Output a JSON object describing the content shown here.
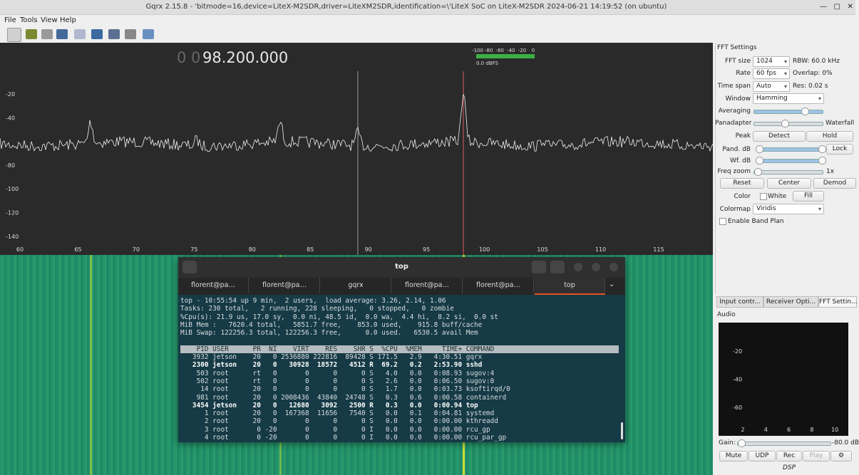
{
  "window": {
    "title": "Gqrx 2.15.8 - 'bitmode=16,device=LiteX-M2SDR,driver=LiteXM2SDR,identification=\\'LiteX SoC on LiteX-M2SDR 2024-06-21 14:19:52 (on ubuntu)",
    "menu": [
      "File",
      "Tools",
      "View",
      "Help"
    ]
  },
  "spectrum": {
    "frequency_dim": "0 0",
    "frequency": "98.200.000",
    "y_labels": [
      -20,
      -40,
      -80,
      -100,
      -120,
      -140
    ],
    "x_labels": [
      60,
      65,
      70,
      75,
      80,
      85,
      90,
      95,
      100,
      105,
      110,
      115
    ],
    "meter_labels": [
      -100,
      -80,
      -60,
      -40,
      -20,
      0
    ],
    "meter_value": "0.0 dBFS"
  },
  "terminal": {
    "title": "top",
    "tabs": [
      "florent@pa…",
      "florent@pa…",
      "gqrx",
      "florent@pa…",
      "florent@pa…",
      "top"
    ],
    "summary": [
      "top - 10:55:54 up 9 min,  2 users,  load average: 3.26, 2.14, 1.06",
      "Tasks: 230 total,   2 running, 228 sleeping,   0 stopped,   0 zombie",
      "%Cpu(s): 21.9 us, 17.0 sy,  0.0 ni, 48.5 id,  0.0 wa,  4.4 hi,  8.2 si,  0.0 st",
      "MiB Mem :   7620.4 total,   5851.7 free,    853.0 used,    915.8 buff/cache",
      "MiB Swap: 122256.3 total, 122256.3 free,      0.0 used.   6530.5 avail Mem"
    ],
    "table_header": "    PID USER      PR  NI    VIRT    RES    SHR S  %CPU  %MEM     TIME+ COMMAND",
    "rows": [
      {
        "text": "   3932 jetson    20   0 2536880 222816  89428 S 171.5   2.9   4:30.51 gqrx",
        "bold": false
      },
      {
        "text": "   2300 jetson    20   0   30928  18572   4512 R  69.2   0.2   2:53.90 sshd",
        "bold": true
      },
      {
        "text": "    503 root      rt   0       0      0      0 S   4.0   0.0   0:08.93 sugov:4",
        "bold": false
      },
      {
        "text": "    502 root      rt   0       0      0      0 S   2.6   0.0   0:06.50 sugov:0",
        "bold": false
      },
      {
        "text": "     14 root      20   0       0      0      0 S   1.7   0.0   0:03.73 ksoftirqd/0",
        "bold": false
      },
      {
        "text": "    981 root      20   0 2008436  43840  24748 S   0.3   0.6   0:00.58 containerd",
        "bold": false
      },
      {
        "text": "   3454 jetson    20   0   12680   3092   2500 R   0.3   0.0   0:00.94 top",
        "bold": true
      },
      {
        "text": "      1 root      20   0  167368  11656   7540 S   0.0   0.1   0:04.81 systemd",
        "bold": false
      },
      {
        "text": "      2 root      20   0       0      0      0 S   0.0   0.0   0:00.00 kthreadd",
        "bold": false
      },
      {
        "text": "      3 root       0 -20       0      0      0 I   0.0   0.0   0:00.00 rcu_gp",
        "bold": false
      },
      {
        "text": "      4 root       0 -20       0      0      0 I   0.0   0.0   0:00.00 rcu_par_gp",
        "bold": false
      }
    ]
  },
  "fft_settings": {
    "title": "FFT Settings",
    "fft_size_label": "FFT size",
    "fft_size": "1024",
    "rbw": "RBW: 60.0 kHz",
    "rate_label": "Rate",
    "rate": "60 fps",
    "overlap": "Overlap: 0%",
    "time_span_label": "Time span",
    "time_span": "Auto",
    "res": "Res: 0.02 s",
    "window_label": "Window",
    "window": "Hamming",
    "averaging_label": "Averaging",
    "panadapter_label": "Panadapter",
    "waterfall_label": "Waterfall",
    "peak_label": "Peak",
    "detect": "Detect",
    "hold": "Hold",
    "pand_db_label": "Pand. dB",
    "lock": "Lock",
    "wf_db_label": "Wf. dB",
    "freq_zoom_label": "Freq zoom",
    "freq_zoom": "1x",
    "reset": "Reset",
    "center": "Center",
    "demod": "Demod",
    "color_label": "Color",
    "white": "White",
    "fill": "Fill",
    "colormap_label": "Colormap",
    "colormap": "Viridis",
    "band_plan": "Enable Band Plan"
  },
  "dock_tabs": [
    "Input contr...",
    "Receiver Opti...",
    "FFT Settin..."
  ],
  "audio": {
    "title": "Audio",
    "y_labels": [
      -20,
      -40,
      -60
    ],
    "x_labels": [
      2,
      4,
      6,
      8,
      10
    ],
    "gain_label": "Gain:",
    "gain_value": "-80.0 dB",
    "buttons": [
      "Mute",
      "UDP",
      "Rec",
      "Play"
    ],
    "footer": "DSP"
  }
}
